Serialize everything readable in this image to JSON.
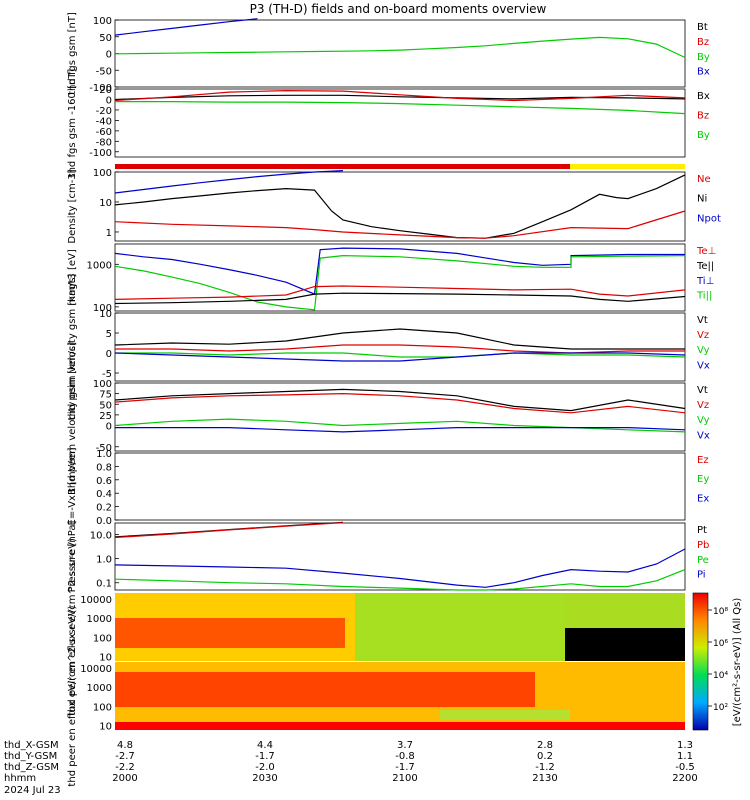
{
  "title": "P3 (TH-D) fields and on-board moments overview",
  "time_axis": {
    "tick_labels": [
      "2000",
      "2030",
      "2100",
      "2130",
      "2200"
    ],
    "rows": [
      {
        "label": "thd_X-GSM",
        "values": [
          "4.8",
          "4.4",
          "3.7",
          "2.8",
          "1.3"
        ]
      },
      {
        "label": "thd_Y-GSM",
        "values": [
          "-2.7",
          "-1.7",
          "-0.8",
          "0.2",
          "1.1"
        ]
      },
      {
        "label": "thd_Z-GSM",
        "values": [
          "-2.2",
          "-2.0",
          "-1.7",
          "-1.2",
          "-0.5"
        ]
      },
      {
        "label": "hhmm",
        "values": [
          "2000",
          "2030",
          "2100",
          "2130",
          "2200"
        ]
      }
    ],
    "date": "2024 Jul 23"
  },
  "colorbar": {
    "label": "[eV/(cm²-s-sr-eV)] (All Qs)",
    "ticks": [
      "10⁸",
      "10⁶",
      "10⁴",
      "10²"
    ]
  },
  "colors": {
    "black": "#000000",
    "red": "#dd0000",
    "green": "#00cc00",
    "blue": "#0000cc",
    "yellow": "#ffee00"
  },
  "chart_data": [
    {
      "type": "line",
      "ylabel": "thd fgs gsm [nT]",
      "ylim": [
        -100,
        100
      ],
      "yticks": [
        "-100",
        "-50",
        "0",
        "50",
        "100"
      ],
      "legend": [
        {
          "name": "Bt",
          "color": "#000000"
        },
        {
          "name": "Bz",
          "color": "#dd0000"
        },
        {
          "name": "By",
          "color": "#00cc00"
        },
        {
          "name": "Bx",
          "color": "#0000cc"
        }
      ],
      "series": [
        {
          "name": "Bx",
          "color": "#0000cc",
          "x": [
            0,
            0.05,
            0.1,
            0.15,
            0.2,
            0.25
          ],
          "y": [
            55,
            65,
            75,
            85,
            95,
            105
          ]
        },
        {
          "name": "By",
          "color": "#00cc00",
          "x": [
            0,
            0.05,
            0.1,
            0.15,
            0.2,
            0.25,
            0.3,
            0.35,
            0.4,
            0.45,
            0.5,
            0.55,
            0.6,
            0.65,
            0.7,
            0.75,
            0.8,
            0.85,
            0.9,
            0.95,
            1.0
          ],
          "y": [
            -1,
            0,
            1,
            2,
            3,
            4,
            5,
            6,
            7,
            8,
            10,
            14,
            18,
            23,
            30,
            37,
            43,
            48,
            44,
            28,
            -12
          ]
        }
      ]
    },
    {
      "type": "line",
      "ylabel": "thd fgs gsm -160 [nT]",
      "ylim": [
        -110,
        20
      ],
      "yticks": [
        "-100",
        "-80",
        "-60",
        "-40",
        "-20",
        "0",
        "20"
      ],
      "legend": [
        {
          "name": "Bx",
          "color": "#000000"
        },
        {
          "name": "Bz",
          "color": "#dd0000"
        },
        {
          "name": "By",
          "color": "#00cc00"
        }
      ],
      "series": [
        {
          "name": "Bx",
          "color": "#000000",
          "x": [
            0,
            0.1,
            0.2,
            0.3,
            0.4,
            0.5,
            0.6,
            0.7,
            0.8,
            0.9,
            1.0
          ],
          "y": [
            0,
            4,
            7,
            8,
            8,
            5,
            3,
            1,
            4,
            3,
            1
          ]
        },
        {
          "name": "Bz",
          "color": "#dd0000",
          "x": [
            0,
            0.1,
            0.2,
            0.3,
            0.4,
            0.5,
            0.6,
            0.7,
            0.8,
            0.9,
            1.0
          ],
          "y": [
            -2,
            5,
            14,
            17,
            16,
            9,
            2,
            -2,
            2,
            8,
            3
          ]
        },
        {
          "name": "By",
          "color": "#00cc00",
          "x": [
            0,
            0.1,
            0.2,
            0.3,
            0.4,
            0.5,
            0.6,
            0.7,
            0.8,
            0.9,
            1.0
          ],
          "y": [
            -4,
            -4,
            -5,
            -5,
            -6,
            -8,
            -11,
            -14,
            -17,
            -21,
            -27
          ]
        }
      ]
    },
    {
      "type": "line",
      "ylabel": "Density [cm-3]",
      "yscale": "log",
      "ylim": [
        0.5,
        100
      ],
      "yticks": [
        "1",
        "10",
        "100"
      ],
      "legend": [
        {
          "name": "Ne",
          "color": "#dd0000"
        },
        {
          "name": "Ni",
          "color": "#000000"
        },
        {
          "name": "Npot",
          "color": "#0000cc"
        }
      ],
      "series": [
        {
          "name": "Npot",
          "color": "#0000cc",
          "x": [
            0,
            0.05,
            0.1,
            0.15,
            0.2,
            0.25,
            0.3,
            0.35,
            0.4
          ],
          "y": [
            20,
            26,
            34,
            44,
            56,
            70,
            85,
            100,
            120
          ]
        },
        {
          "name": "Ni",
          "color": "#000000",
          "x": [
            0,
            0.05,
            0.1,
            0.15,
            0.2,
            0.25,
            0.3,
            0.35,
            0.38,
            0.4,
            0.45,
            0.5,
            0.55,
            0.6,
            0.65,
            0.7,
            0.75,
            0.8,
            0.85,
            0.88,
            0.9,
            0.95,
            1.0
          ],
          "y": [
            8,
            10,
            13,
            16,
            20,
            24,
            28,
            25,
            5,
            2.5,
            1.5,
            1.1,
            0.85,
            0.65,
            0.62,
            0.9,
            2.2,
            5.5,
            18,
            14,
            13,
            28,
            80
          ]
        },
        {
          "name": "Ne",
          "color": "#dd0000",
          "x": [
            0,
            0.1,
            0.2,
            0.3,
            0.35,
            0.4,
            0.5,
            0.6,
            0.65,
            0.7,
            0.8,
            0.9,
            1.0
          ],
          "y": [
            2.2,
            1.8,
            1.6,
            1.4,
            1.2,
            1.0,
            0.8,
            0.65,
            0.62,
            0.75,
            1.4,
            1.3,
            5
          ]
        }
      ]
    },
    {
      "type": "line",
      "ylabel": "magt3 [eV]",
      "yscale": "log",
      "ylim": [
        80,
        3000
      ],
      "yticks": [
        "100",
        "1000"
      ],
      "legend": [
        {
          "name": "Te⊥",
          "color": "#dd0000"
        },
        {
          "name": "Te||",
          "color": "#000000"
        },
        {
          "name": "Ti⊥",
          "color": "#0000cc"
        },
        {
          "name": "Ti||",
          "color": "#00cc00"
        }
      ],
      "series": [
        {
          "name": "Ti⊥",
          "color": "#0000cc",
          "x": [
            0,
            0.05,
            0.1,
            0.15,
            0.2,
            0.25,
            0.3,
            0.35,
            0.36,
            0.4,
            0.5,
            0.6,
            0.7,
            0.75,
            0.8,
            0.8,
            0.9,
            1.0
          ],
          "y": [
            1800,
            1500,
            1300,
            1000,
            750,
            550,
            380,
            200,
            2200,
            2400,
            2300,
            1800,
            1100,
            950,
            1000,
            1600,
            1700,
            1700
          ]
        },
        {
          "name": "Ti||",
          "color": "#00cc00",
          "x": [
            0,
            0.05,
            0.1,
            0.15,
            0.2,
            0.25,
            0.3,
            0.35,
            0.36,
            0.4,
            0.5,
            0.6,
            0.7,
            0.75,
            0.8,
            0.8,
            0.9,
            1.0
          ],
          "y": [
            900,
            700,
            500,
            350,
            220,
            130,
            100,
            85,
            1400,
            1600,
            1500,
            1200,
            900,
            850,
            850,
            1500,
            1550,
            1600
          ]
        },
        {
          "name": "Te⊥",
          "color": "#dd0000",
          "x": [
            0,
            0.1,
            0.2,
            0.3,
            0.35,
            0.4,
            0.5,
            0.6,
            0.7,
            0.8,
            0.85,
            0.9,
            1.0
          ],
          "y": [
            150,
            160,
            170,
            190,
            300,
            310,
            290,
            270,
            250,
            260,
            200,
            180,
            250
          ]
        },
        {
          "name": "Te||",
          "color": "#000000",
          "x": [
            0,
            0.1,
            0.2,
            0.3,
            0.35,
            0.4,
            0.5,
            0.6,
            0.7,
            0.8,
            0.85,
            0.9,
            1.0
          ],
          "y": [
            120,
            125,
            135,
            150,
            200,
            210,
            205,
            200,
            190,
            180,
            150,
            135,
            175
          ]
        }
      ]
    },
    {
      "type": "line",
      "ylabel": "thd peim velocity gsm [km/s]",
      "ylim": [
        -7,
        10
      ],
      "yticks": [
        "-5",
        "0",
        "5",
        "10"
      ],
      "legend": [
        {
          "name": "Vt",
          "color": "#000000"
        },
        {
          "name": "Vz",
          "color": "#dd0000"
        },
        {
          "name": "Vy",
          "color": "#00cc00"
        },
        {
          "name": "Vx",
          "color": "#0000cc"
        }
      ],
      "series": [
        {
          "name": "Vt",
          "color": "#000000",
          "x": [
            0,
            0.1,
            0.2,
            0.3,
            0.4,
            0.5,
            0.6,
            0.7,
            0.8,
            0.9,
            1.0
          ],
          "y": [
            2,
            2.5,
            2.2,
            3,
            5,
            6,
            5,
            2,
            1,
            1,
            1
          ]
        },
        {
          "name": "Vz",
          "color": "#dd0000",
          "x": [
            0,
            0.1,
            0.2,
            0.3,
            0.4,
            0.5,
            0.6,
            0.7,
            0.8,
            0.9,
            1.0
          ],
          "y": [
            1,
            1,
            0.5,
            1,
            2,
            2,
            1.5,
            0.5,
            0,
            0.5,
            0.5
          ]
        },
        {
          "name": "Vy",
          "color": "#00cc00",
          "x": [
            0,
            0.1,
            0.2,
            0.3,
            0.4,
            0.5,
            0.6,
            0.7,
            0.8,
            0.9,
            1.0
          ],
          "y": [
            0,
            0,
            -0.5,
            0,
            0,
            -1,
            -1,
            0,
            -0.5,
            -0.5,
            -1
          ]
        },
        {
          "name": "Vx",
          "color": "#0000cc",
          "x": [
            0,
            0.1,
            0.2,
            0.3,
            0.4,
            0.5,
            0.6,
            0.7,
            0.8,
            0.9,
            1.0
          ],
          "y": [
            0,
            -0.5,
            -1,
            -1.5,
            -2,
            -2,
            -1,
            0,
            0,
            0,
            -0.5
          ]
        }
      ]
    },
    {
      "type": "line",
      "ylabel": "thd peem velocity gsm [km/s]",
      "ylim": [
        -60,
        100
      ],
      "yticks": [
        "-50",
        "0",
        "25",
        "50",
        "75",
        "100"
      ],
      "legend": [
        {
          "name": "Vt",
          "color": "#000000"
        },
        {
          "name": "Vz",
          "color": "#dd0000"
        },
        {
          "name": "Vy",
          "color": "#00cc00"
        },
        {
          "name": "Vx",
          "color": "#0000cc"
        }
      ],
      "series": [
        {
          "name": "Vt",
          "color": "#000000",
          "x": [
            0,
            0.1,
            0.2,
            0.3,
            0.4,
            0.5,
            0.6,
            0.7,
            0.8,
            0.9,
            1.0
          ],
          "y": [
            60,
            70,
            75,
            80,
            85,
            80,
            70,
            45,
            35,
            60,
            40
          ]
        },
        {
          "name": "Vz",
          "color": "#dd0000",
          "x": [
            0,
            0.1,
            0.2,
            0.3,
            0.4,
            0.5,
            0.6,
            0.7,
            0.8,
            0.9,
            1.0
          ],
          "y": [
            55,
            65,
            70,
            72,
            75,
            70,
            60,
            40,
            30,
            45,
            30
          ]
        },
        {
          "name": "Vy",
          "color": "#00cc00",
          "x": [
            0,
            0.1,
            0.2,
            0.3,
            0.4,
            0.5,
            0.6,
            0.7,
            0.8,
            0.9,
            1.0
          ],
          "y": [
            0,
            10,
            15,
            10,
            0,
            5,
            10,
            0,
            -5,
            -10,
            -15
          ]
        },
        {
          "name": "Vx",
          "color": "#0000cc",
          "x": [
            0,
            0.1,
            0.2,
            0.3,
            0.4,
            0.5,
            0.6,
            0.7,
            0.8,
            0.9,
            1.0
          ],
          "y": [
            -5,
            -5,
            -5,
            -10,
            -15,
            -10,
            -5,
            -5,
            -5,
            -5,
            -10
          ]
        }
      ]
    },
    {
      "type": "line",
      "ylabel": "E=-VxB [mV/m]",
      "ylim": [
        0,
        1
      ],
      "yticks": [
        "0.0",
        "0.2",
        "0.4",
        "0.6",
        "0.8",
        "1.0"
      ],
      "legend": [
        {
          "name": "Ez",
          "color": "#dd0000"
        },
        {
          "name": "Ey",
          "color": "#00cc00"
        },
        {
          "name": "Ex",
          "color": "#0000cc"
        }
      ],
      "series": []
    },
    {
      "type": "line",
      "ylabel": "Pressure [nPa]",
      "yscale": "log",
      "ylim": [
        0.05,
        30
      ],
      "yticks": [
        "0.1",
        "1.0",
        "10.0"
      ],
      "legend": [
        {
          "name": "Pt",
          "color": "#000000"
        },
        {
          "name": "Pb",
          "color": "#dd0000"
        },
        {
          "name": "Pe",
          "color": "#00cc00"
        },
        {
          "name": "Pi",
          "color": "#0000cc"
        }
      ],
      "series": [
        {
          "name": "Pt",
          "color": "#000000",
          "x": [
            0,
            0.1,
            0.2,
            0.3,
            0.4
          ],
          "y": [
            8,
            11,
            16,
            23,
            32
          ]
        },
        {
          "name": "Pb",
          "color": "#dd0000",
          "x": [
            0,
            0.1,
            0.2,
            0.3,
            0.4
          ],
          "y": [
            7.5,
            10.5,
            15.5,
            22,
            31
          ]
        },
        {
          "name": "Pi",
          "color": "#0000cc",
          "x": [
            0,
            0.1,
            0.2,
            0.3,
            0.4,
            0.5,
            0.6,
            0.65,
            0.7,
            0.75,
            0.8,
            0.85,
            0.9,
            0.95,
            1.0
          ],
          "y": [
            0.55,
            0.5,
            0.45,
            0.4,
            0.25,
            0.15,
            0.08,
            0.065,
            0.1,
            0.2,
            0.35,
            0.3,
            0.28,
            0.6,
            2.5
          ]
        },
        {
          "name": "Pe",
          "color": "#00cc00",
          "x": [
            0,
            0.1,
            0.2,
            0.3,
            0.4,
            0.5,
            0.6,
            0.65,
            0.7,
            0.8,
            0.85,
            0.9,
            0.95,
            1.0
          ],
          "y": [
            0.14,
            0.12,
            0.1,
            0.09,
            0.07,
            0.06,
            0.05,
            0.05,
            0.055,
            0.09,
            0.07,
            0.07,
            0.12,
            0.35
          ]
        }
      ]
    },
    {
      "type": "heatmap",
      "ylabel": "thd peir en eflux eV/(cm^2-s-sr-eV)",
      "yscale": "log",
      "ylim": [
        6,
        20000
      ],
      "yticks": [
        "10",
        "100",
        "1000",
        "10000"
      ]
    },
    {
      "type": "heatmap",
      "ylabel": "thd peer en eflux eV/(cm^2-s-sr-eV)",
      "yscale": "log",
      "ylim": [
        6,
        20000
      ],
      "yticks": [
        "10",
        "100",
        "1000",
        "10000"
      ]
    }
  ]
}
